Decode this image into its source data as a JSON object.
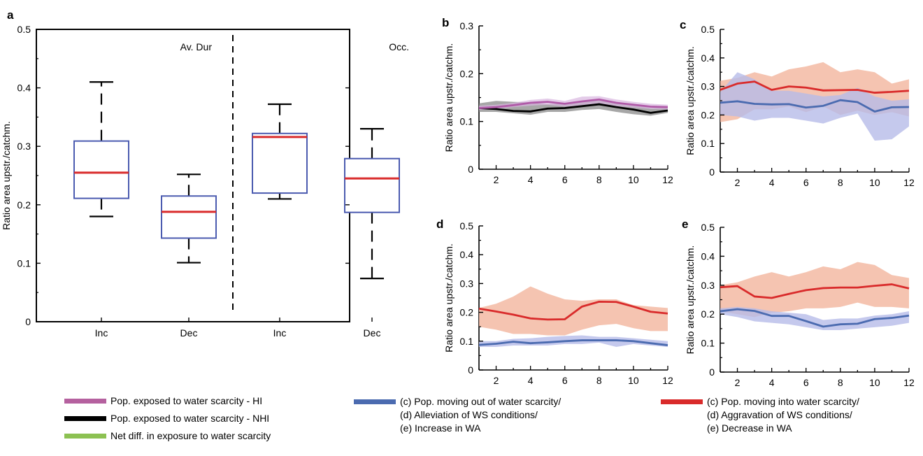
{
  "chart_data": [
    {
      "panel": "a",
      "type": "box",
      "ylabel": "Ratio area upstr./catchm.",
      "ylim": [
        0,
        0.5
      ],
      "yticks": [
        "0",
        "0.1",
        "0.2",
        "0.3",
        "0.4",
        "0.5"
      ],
      "categories": [
        "Inc",
        "Dec",
        "Inc",
        "Dec"
      ],
      "groups": [
        "Av. Dur",
        "Occ."
      ],
      "boxes": [
        {
          "category": "Inc",
          "group": "Av. Dur",
          "min": 0.18,
          "q1": 0.211,
          "median": 0.255,
          "q3": 0.309,
          "max": 0.41
        },
        {
          "category": "Dec",
          "group": "Av. Dur",
          "min": 0.101,
          "q1": 0.143,
          "median": 0.188,
          "q3": 0.215,
          "max": 0.252
        },
        {
          "category": "Inc",
          "group": "Occ.",
          "min": 0.21,
          "q1": 0.22,
          "median": 0.316,
          "q3": 0.322,
          "max": 0.372
        },
        {
          "category": "Dec",
          "group": "Occ.",
          "min": 0.074,
          "q1": 0.187,
          "median": 0.245,
          "q3": 0.279,
          "max": 0.33
        }
      ]
    },
    {
      "panel": "b",
      "type": "line",
      "ylabel": "Ratio area upstr./catchm.",
      "ylim": [
        0,
        0.3
      ],
      "yticks": [
        "0",
        "0.1",
        "0.2",
        "0.3"
      ],
      "xlim": [
        1,
        12
      ],
      "xticks": [
        "2",
        "4",
        "6",
        "8",
        "10",
        "12"
      ],
      "x": [
        1,
        2,
        3,
        4,
        5,
        6,
        7,
        8,
        9,
        10,
        11,
        12
      ],
      "series": [
        {
          "key": "nhi",
          "values": [
            0.128,
            0.126,
            0.122,
            0.121,
            0.127,
            0.128,
            0.132,
            0.136,
            0.13,
            0.125,
            0.118,
            0.123
          ],
          "band": [
            [
              0.12,
              0.138
            ],
            [
              0.12,
              0.143
            ],
            [
              0.117,
              0.141
            ],
            [
              0.114,
              0.14
            ],
            [
              0.12,
              0.136
            ],
            [
              0.12,
              0.138
            ],
            [
              0.124,
              0.142
            ],
            [
              0.126,
              0.144
            ],
            [
              0.12,
              0.14
            ],
            [
              0.115,
              0.134
            ],
            [
              0.112,
              0.128
            ],
            [
              0.118,
              0.13
            ]
          ]
        },
        {
          "key": "hi",
          "values": [
            0.128,
            0.13,
            0.134,
            0.139,
            0.141,
            0.137,
            0.142,
            0.146,
            0.139,
            0.135,
            0.131,
            0.13
          ],
          "band": [
            [
              0.124,
              0.133
            ],
            [
              0.126,
              0.135
            ],
            [
              0.13,
              0.139
            ],
            [
              0.133,
              0.145
            ],
            [
              0.135,
              0.148
            ],
            [
              0.131,
              0.143
            ],
            [
              0.134,
              0.152
            ],
            [
              0.138,
              0.153
            ],
            [
              0.132,
              0.146
            ],
            [
              0.129,
              0.141
            ],
            [
              0.126,
              0.137
            ],
            [
              0.125,
              0.135
            ]
          ]
        }
      ]
    },
    {
      "panel": "c",
      "type": "line",
      "ylabel": "Ratio area upstr./catchm.",
      "ylim": [
        0,
        0.5
      ],
      "yticks": [
        "0",
        "0.1",
        "0.2",
        "0.3",
        "0.4",
        "0.5"
      ],
      "xlim": [
        1,
        12
      ],
      "xticks": [
        "2",
        "4",
        "6",
        "8",
        "10",
        "12"
      ],
      "x": [
        1,
        2,
        3,
        4,
        5,
        6,
        7,
        8,
        9,
        10,
        11,
        12
      ],
      "series": [
        {
          "key": "red",
          "values": [
            0.288,
            0.31,
            0.317,
            0.288,
            0.3,
            0.296,
            0.286,
            0.287,
            0.288,
            0.278,
            0.281,
            0.285
          ],
          "band": [
            [
              0.175,
              0.32
            ],
            [
              0.185,
              0.33
            ],
            [
              0.22,
              0.35
            ],
            [
              0.22,
              0.335
            ],
            [
              0.23,
              0.36
            ],
            [
              0.21,
              0.37
            ],
            [
              0.23,
              0.385
            ],
            [
              0.2,
              0.35
            ],
            [
              0.215,
              0.36
            ],
            [
              0.2,
              0.35
            ],
            [
              0.21,
              0.31
            ],
            [
              0.195,
              0.325
            ]
          ]
        },
        {
          "key": "blue",
          "values": [
            0.243,
            0.248,
            0.239,
            0.237,
            0.238,
            0.226,
            0.232,
            0.252,
            0.245,
            0.212,
            0.227,
            0.228
          ],
          "band": [
            [
              0.2,
              0.28
            ],
            [
              0.195,
              0.35
            ],
            [
              0.18,
              0.325
            ],
            [
              0.19,
              0.285
            ],
            [
              0.19,
              0.285
            ],
            [
              0.18,
              0.275
            ],
            [
              0.17,
              0.265
            ],
            [
              0.19,
              0.27
            ],
            [
              0.205,
              0.295
            ],
            [
              0.11,
              0.265
            ],
            [
              0.115,
              0.25
            ],
            [
              0.16,
              0.255
            ]
          ]
        }
      ]
    },
    {
      "panel": "d",
      "type": "line",
      "ylabel": "Ratio area upstr./catchm.",
      "ylim": [
        0,
        0.5
      ],
      "yticks": [
        "0",
        "0.1",
        "0.2",
        "0.3",
        "0.4",
        "0.5"
      ],
      "xlim": [
        1,
        12
      ],
      "xticks": [
        "2",
        "4",
        "6",
        "8",
        "10",
        "12"
      ],
      "x": [
        1,
        2,
        3,
        4,
        5,
        6,
        7,
        8,
        9,
        10,
        11,
        12
      ],
      "series": [
        {
          "key": "red",
          "values": [
            0.213,
            0.203,
            0.192,
            0.179,
            0.175,
            0.176,
            0.22,
            0.237,
            0.236,
            0.22,
            0.202,
            0.196
          ],
          "band": [
            [
              0.15,
              0.215
            ],
            [
              0.14,
              0.23
            ],
            [
              0.125,
              0.255
            ],
            [
              0.125,
              0.29
            ],
            [
              0.12,
              0.265
            ],
            [
              0.12,
              0.245
            ],
            [
              0.14,
              0.24
            ],
            [
              0.155,
              0.245
            ],
            [
              0.16,
              0.245
            ],
            [
              0.145,
              0.225
            ],
            [
              0.135,
              0.22
            ],
            [
              0.135,
              0.215
            ]
          ]
        },
        {
          "key": "blue",
          "values": [
            0.087,
            0.091,
            0.098,
            0.093,
            0.096,
            0.1,
            0.103,
            0.103,
            0.103,
            0.1,
            0.093,
            0.086
          ],
          "band": [
            [
              0.08,
              0.1
            ],
            [
              0.08,
              0.1
            ],
            [
              0.085,
              0.108
            ],
            [
              0.085,
              0.11
            ],
            [
              0.085,
              0.115
            ],
            [
              0.09,
              0.118
            ],
            [
              0.09,
              0.12
            ],
            [
              0.095,
              0.115
            ],
            [
              0.08,
              0.115
            ],
            [
              0.09,
              0.11
            ],
            [
              0.085,
              0.105
            ],
            [
              0.08,
              0.1
            ]
          ]
        }
      ]
    },
    {
      "panel": "e",
      "type": "line",
      "ylabel": "Ratio area upstr./catchm.",
      "ylim": [
        0,
        0.5
      ],
      "yticks": [
        "0",
        "0.1",
        "0.2",
        "0.3",
        "0.4",
        "0.5"
      ],
      "xlim": [
        1,
        12
      ],
      "xticks": [
        "2",
        "4",
        "6",
        "8",
        "10",
        "12"
      ],
      "x": [
        1,
        2,
        3,
        4,
        5,
        6,
        7,
        8,
        9,
        10,
        11,
        12
      ],
      "series": [
        {
          "key": "red",
          "values": [
            0.293,
            0.297,
            0.261,
            0.256,
            0.27,
            0.283,
            0.29,
            0.292,
            0.292,
            0.298,
            0.303,
            0.289
          ],
          "band": [
            [
              0.21,
              0.3
            ],
            [
              0.2,
              0.31
            ],
            [
              0.19,
              0.33
            ],
            [
              0.205,
              0.345
            ],
            [
              0.21,
              0.33
            ],
            [
              0.22,
              0.345
            ],
            [
              0.22,
              0.365
            ],
            [
              0.225,
              0.355
            ],
            [
              0.24,
              0.38
            ],
            [
              0.225,
              0.37
            ],
            [
              0.225,
              0.335
            ],
            [
              0.22,
              0.325
            ]
          ]
        },
        {
          "key": "blue",
          "values": [
            0.21,
            0.217,
            0.211,
            0.194,
            0.194,
            0.176,
            0.157,
            0.165,
            0.167,
            0.183,
            0.187,
            0.195
          ],
          "band": [
            [
              0.2,
              0.22
            ],
            [
              0.19,
              0.225
            ],
            [
              0.175,
              0.22
            ],
            [
              0.17,
              0.21
            ],
            [
              0.165,
              0.205
            ],
            [
              0.155,
              0.2
            ],
            [
              0.145,
              0.18
            ],
            [
              0.145,
              0.185
            ],
            [
              0.15,
              0.185
            ],
            [
              0.155,
              0.195
            ],
            [
              0.16,
              0.2
            ],
            [
              0.17,
              0.21
            ]
          ]
        }
      ]
    }
  ],
  "annotations": {
    "av_dur": "Av. Dur",
    "occ": "Occ."
  },
  "legend": [
    {
      "key": "hi",
      "color": "#b5619f",
      "text": "Pop. exposed to water scarcity - HI"
    },
    {
      "key": "nhi",
      "color": "#000000",
      "text": "Pop. exposed to water scarcity - NHI"
    },
    {
      "key": "net",
      "color": "#8cc152",
      "text": "Net diff. in exposure to water scarcity"
    },
    {
      "key": "blue",
      "color": "#4b6bb0",
      "text": "(c) Pop. moving out of water scarcity/\n(d) Alleviation of  WS conditions/\n(e) Increase in WA"
    },
    {
      "key": "red",
      "color": "#d92b2b",
      "text": "(c) Pop. moving into water scarcity/\n(d) Aggravation of WS conditions/\n(e) Decrease in WA"
    }
  ],
  "colors": {
    "box_edge": "#4b5bb0",
    "median": "#d92b2b",
    "whisker": "#000000",
    "red_line": "#d92b2b",
    "red_band": "#f2b59e",
    "blue_line": "#4b6bb0",
    "blue_band": "#b7bce8",
    "hi_line": "#b05aa8",
    "hi_band": "#d9b6e0",
    "nhi_line": "#000000",
    "nhi_band": "#8a8a8a"
  }
}
